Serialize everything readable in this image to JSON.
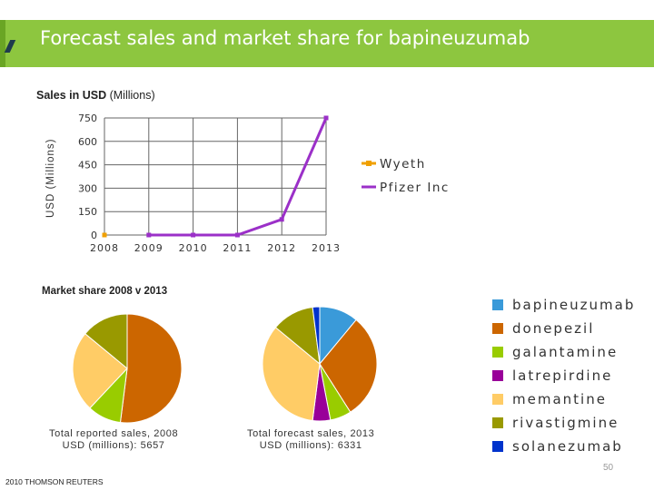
{
  "header": {
    "title": "Forecast sales and market share for bapineuzumab"
  },
  "line_chart": {
    "title_bold": "Sales in USD",
    "title_rest": "(Millions)",
    "ylabel": "USD (Millions)"
  },
  "pie_section": {
    "title": "Market share 2008 v 2013",
    "captions": [
      [
        "Total reported sales, 2008",
        "USD (millions): 5657"
      ],
      [
        "Total forecast sales, 2013",
        "USD (millions): 6331"
      ]
    ]
  },
  "legend": [
    {
      "label": "bapineuzumab",
      "color": "#3a9ad9"
    },
    {
      "label": "donepezil",
      "color": "#cc6600"
    },
    {
      "label": "galantamine",
      "color": "#99cc00"
    },
    {
      "label": "latrepirdine",
      "color": "#990099"
    },
    {
      "label": "memantine",
      "color": "#ffcc66"
    },
    {
      "label": "rivastigmine",
      "color": "#999900"
    },
    {
      "label": "solanezumab",
      "color": "#0033cc"
    }
  ],
  "footer": {
    "text": "2010 THOMSON REUTERS",
    "page": "50"
  },
  "chart_data": [
    {
      "type": "line",
      "title": "Sales in USD (Millions)",
      "ylabel": "USD (Millions)",
      "xlabel": "",
      "x": [
        "2008",
        "2009",
        "2010",
        "2011",
        "2012",
        "2013"
      ],
      "ylim": [
        0,
        750
      ],
      "yticks": [
        "0",
        "150",
        "300",
        "450",
        "600",
        "750"
      ],
      "grid": true,
      "legend_position": "right",
      "series": [
        {
          "name": "Wyeth",
          "color": "#f0a000",
          "values": [
            0,
            null,
            null,
            null,
            null,
            null
          ]
        },
        {
          "name": "Pfizer Inc",
          "color": "#9b30c8",
          "values": [
            null,
            0,
            0,
            0,
            100,
            750
          ]
        }
      ]
    },
    {
      "type": "pie",
      "title": "Market share 2008",
      "caption": "Total reported sales, 2008 USD (millions): 5657",
      "categories": [
        "bapineuzumab",
        "donepezil",
        "galantamine",
        "latrepirdine",
        "memantine",
        "rivastigmine",
        "solanezumab"
      ],
      "values": [
        0,
        52,
        10,
        0,
        24,
        14,
        0
      ]
    },
    {
      "type": "pie",
      "title": "Market share 2013",
      "caption": "Total forecast sales, 2013 USD (millions): 6331",
      "categories": [
        "bapineuzumab",
        "donepezil",
        "galantamine",
        "latrepirdine",
        "memantine",
        "rivastigmine",
        "solanezumab"
      ],
      "values": [
        11,
        30,
        6,
        5,
        34,
        12,
        2
      ]
    }
  ]
}
